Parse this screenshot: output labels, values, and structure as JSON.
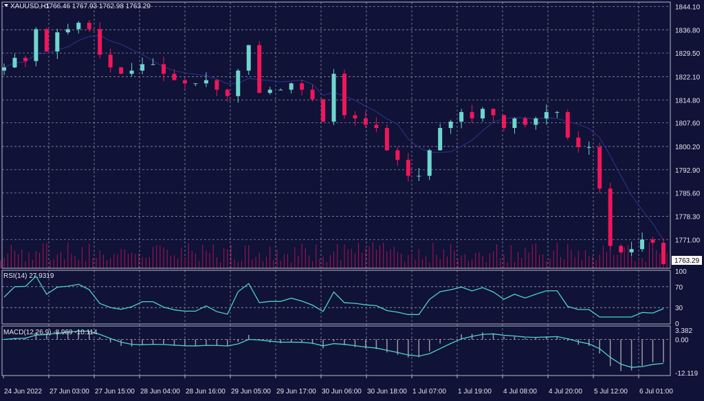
{
  "chart_data": {
    "type": "candlestick",
    "symbol_header": "XAUUSD,H1",
    "ohlc_header": "1766.46 1767.93 1762.98 1763.29",
    "current_price": "1763.29",
    "price_ticks": [
      "1844.10",
      "1836.80",
      "1829.50",
      "1822.10",
      "1814.80",
      "1807.60",
      "1800.20",
      "1792.90",
      "1785.60",
      "1778.30",
      "1771.00"
    ],
    "price_range": [
      1762.0,
      1845.5
    ],
    "time_ticks": [
      "24 Jun 2022",
      "27 Jun 03:00",
      "27 Jun 15:00",
      "28 Jun 04:00",
      "28 Jun 16:00",
      "29 Jun 05:00",
      "29 Jun 17:00",
      "30 Jun 06:00",
      "30 Jun 18:00",
      "1 Jul 07:00",
      "1 Jul 19:00",
      "4 Jul 08:00",
      "4 Jul 20:00",
      "5 Jul 12:00",
      "6 Jul 01:00"
    ],
    "closes": [
      1825,
      1828,
      1827,
      1837,
      1830,
      1836,
      1837,
      1839,
      1837,
      1829,
      1825,
      1823,
      1824,
      1826,
      1826,
      1823,
      1821,
      1820,
      1820,
      1821,
      1818,
      1816,
      1824,
      1832,
      1817,
      1818,
      1818,
      1820,
      1818,
      1815,
      1808,
      1823,
      1810,
      1809,
      1807,
      1806,
      1799,
      1796,
      1791,
      1791,
      1799,
      1806,
      1808,
      1811,
      1809,
      1812,
      1810,
      1806,
      1809,
      1807,
      1809,
      1811,
      1811,
      1803,
      1800,
      1800,
      1787,
      1769,
      1767,
      1768,
      1771,
      1770,
      1763.29
    ],
    "rsi": {
      "label": "RSI(14) 27.9319",
      "levels": [
        30,
        70
      ],
      "ticks": [
        "100",
        "70",
        "30",
        "0"
      ]
    },
    "macd": {
      "label": "MACD(12,26,9) -8.969 -10.114",
      "ticks": [
        "3.382",
        "0.00",
        "-12.119"
      ],
      "range": [
        -12.119,
        3.382
      ]
    },
    "colors": {
      "background": "#101237",
      "bull": "#6fd6cf",
      "bear": "#f0165a",
      "grid": "#8a8ea8",
      "ma": "#2a2f80",
      "indicator": "#4fd3c8",
      "histogram": "#9a9aa8"
    }
  }
}
